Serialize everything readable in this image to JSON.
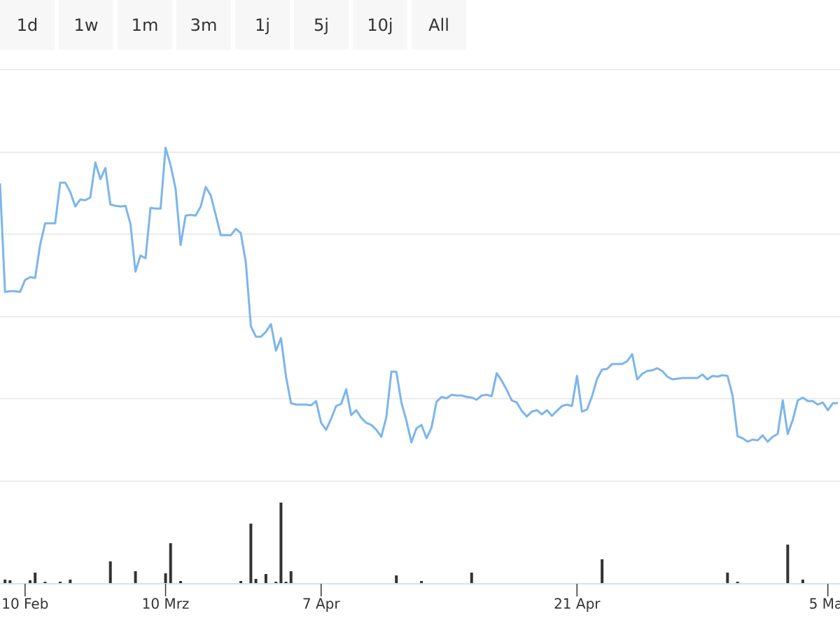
{
  "range_buttons": [
    "1d",
    "1w",
    "1m",
    "3m",
    "1j",
    "5j",
    "10j",
    "All"
  ],
  "chart_data": {
    "type": "line",
    "categories": [
      null,
      null,
      null,
      null,
      null,
      "10 Feb",
      null,
      null,
      null,
      null,
      null,
      null,
      null,
      null,
      null,
      null,
      null,
      null,
      null,
      null,
      null,
      null,
      null,
      null,
      null,
      null,
      null,
      null,
      null,
      null,
      null,
      null,
      null,
      "10 Mrz",
      null,
      null,
      null,
      null,
      null,
      null,
      null,
      null,
      null,
      null,
      null,
      null,
      null,
      null,
      null,
      null,
      null,
      null,
      null,
      null,
      null,
      null,
      null,
      null,
      null,
      null,
      null,
      null,
      null,
      null,
      "7 Apr",
      null,
      null,
      null,
      null,
      null,
      null,
      null,
      null,
      null,
      null,
      null,
      null,
      null,
      null,
      null,
      null,
      null,
      null,
      null,
      null,
      null,
      null,
      null,
      null,
      null,
      null,
      null,
      null,
      null,
      null,
      null,
      null,
      null,
      null,
      null,
      null,
      null,
      null,
      null,
      null,
      null,
      null,
      null,
      null,
      null,
      null,
      null,
      null,
      null,
      null,
      "21 Apr",
      null,
      null,
      null,
      null,
      null,
      null,
      null,
      null,
      null,
      null,
      null,
      null,
      null,
      null,
      null,
      null,
      null,
      null,
      null,
      null,
      null,
      null,
      null,
      null,
      null,
      null,
      null,
      null,
      null,
      null,
      null,
      null,
      null,
      null,
      null,
      null,
      null,
      null,
      null,
      null,
      null,
      null,
      null,
      null,
      null,
      null,
      null,
      null,
      null,
      "5 Mai",
      null,
      null
    ],
    "series": [
      {
        "color": "#7cb5ec",
        "values": [
          425,
          270,
          271,
          271,
          270,
          287,
          291,
          290,
          337,
          368,
          368,
          368,
          426,
          426,
          413,
          392,
          402,
          401,
          405,
          455,
          431,
          447,
          395,
          393,
          392,
          393,
          367,
          299,
          322,
          318,
          390,
          389,
          389,
          476,
          451,
          417,
          337,
          379,
          380,
          379,
          392,
          420,
          408,
          380,
          351,
          351,
          351,
          360,
          354,
          312,
          221,
          206,
          206,
          213,
          224,
          186,
          204,
          149,
          111,
          109,
          109,
          109,
          108,
          114,
          83,
          73,
          89,
          107,
          110,
          131,
          94,
          101,
          90,
          83,
          80,
          73,
          63,
          91,
          156,
          156,
          112,
          86,
          55,
          75,
          80,
          61,
          76,
          113,
          120,
          118,
          123,
          122,
          122,
          120,
          119,
          116,
          122,
          123,
          121,
          154,
          143,
          130,
          115,
          112,
          100,
          92,
          99,
          101,
          95,
          101,
          93,
          100,
          107,
          109,
          107,
          150,
          99,
          102,
          121,
          146,
          159,
          160,
          167,
          167,
          167,
          171,
          181,
          145,
          153,
          157,
          158,
          161,
          157,
          149,
          145,
          146,
          147,
          147,
          147,
          147,
          152,
          145,
          150,
          149,
          151,
          150,
          122,
          64,
          61,
          56,
          59,
          58,
          65,
          56,
          63,
          67,
          115,
          67,
          87,
          115,
          119,
          114,
          114,
          109,
          112,
          101,
          111,
          111
        ]
      },
      {
        "color": "#333333",
        "axis": "y2",
        "values": [
          0,
          5,
          4,
          0,
          0,
          0,
          4,
          15,
          0,
          2,
          0,
          0,
          2,
          0,
          5,
          0,
          0,
          0,
          0,
          0,
          0,
          0,
          31,
          0,
          0,
          0,
          0,
          17,
          0,
          0,
          0,
          0,
          0,
          14,
          57,
          0,
          3,
          0,
          0,
          0,
          0,
          0,
          0,
          0,
          0,
          0,
          0,
          0,
          3,
          0,
          85,
          6,
          0,
          13,
          0,
          2,
          115,
          2,
          17,
          0,
          0,
          0,
          0,
          0,
          0,
          0,
          0,
          0,
          0,
          0,
          0,
          0,
          0,
          0,
          0,
          0,
          0,
          0,
          0,
          11,
          0,
          0,
          0,
          0,
          3,
          0,
          0,
          0,
          0,
          0,
          0,
          0,
          0,
          0,
          15,
          0,
          0,
          0,
          0,
          0,
          0,
          0,
          0,
          0,
          0,
          0,
          0,
          0,
          0,
          0,
          0,
          0,
          0,
          0,
          0,
          0,
          0,
          0,
          0,
          0,
          34,
          0,
          0,
          0,
          0,
          0,
          0,
          0,
          0,
          0,
          0,
          0,
          0,
          0,
          0,
          0,
          0,
          0,
          0,
          0,
          0,
          0,
          0,
          0,
          0,
          15,
          0,
          2,
          0,
          0,
          0,
          0,
          0,
          0,
          0,
          0,
          0,
          55,
          0,
          0,
          5,
          0,
          0,
          0,
          0,
          0,
          0,
          0
        ]
      }
    ],
    "ylim": [
      0,
      588
    ],
    "yticks": [
      0,
      118,
      235,
      353,
      470,
      588
    ],
    "y2lim": [
      0,
      115
    ],
    "grid": true
  }
}
